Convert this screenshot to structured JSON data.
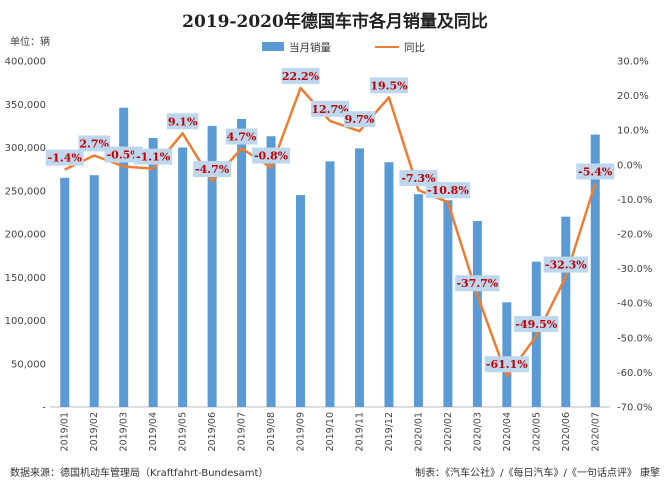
{
  "title": "2019-2020年德国车市各月销量及同比",
  "unit_label": "单位：辆",
  "source_label": "数据来源：德国机动车管理局（Kraftfahrt-Bundesamt）",
  "credit_label": "制表：《汽车公社》/《每日汽车》/《一句话点评》  康擎",
  "colors": {
    "bar": "#5b9bd5",
    "line": "#ed7d31",
    "label_text": "#c00000",
    "label_bg": "#bdd7ee"
  },
  "chart_data": {
    "type": "bar+line",
    "categories": [
      "2019/01",
      "2019/02",
      "2019/03",
      "2019/04",
      "2019/05",
      "2019/06",
      "2019/07",
      "2019/08",
      "2019/09",
      "2019/10",
      "2019/11",
      "2019/12",
      "2020/01",
      "2020/02",
      "2020/03",
      "2020/04",
      "2020/05",
      "2020/06",
      "2020/07"
    ],
    "series": [
      {
        "name": "当月销量",
        "type": "bar",
        "axis": "left",
        "values": [
          265000,
          268000,
          346000,
          311000,
          300000,
          325000,
          333000,
          313000,
          245000,
          284000,
          299000,
          283000,
          246000,
          239000,
          215000,
          121000,
          168000,
          220000,
          315000
        ]
      },
      {
        "name": "同比",
        "type": "line",
        "axis": "right",
        "values": [
          -1.4,
          2.7,
          -0.5,
          -1.1,
          9.1,
          -4.7,
          4.7,
          -0.8,
          22.2,
          12.7,
          9.7,
          19.5,
          -7.3,
          -10.8,
          -37.7,
          -61.1,
          -49.5,
          -32.3,
          -5.4
        ],
        "labels": [
          "-1.4%",
          "2.7%",
          "-0.5%",
          "-1.1%",
          "9.1%",
          "-4.7%",
          "4.7%",
          "-0.8%",
          "22.2%",
          "12.7%",
          "9.7%",
          "19.5%",
          "-7.3%",
          "-10.8%",
          "-37.7%",
          "-61.1%",
          "-49.5%",
          "-32.3%",
          "-5.4%"
        ]
      }
    ],
    "y_left": {
      "range": [
        0,
        400000
      ],
      "ticks": [
        "-",
        "50,000",
        "100,000",
        "150,000",
        "200,000",
        "250,000",
        "300,000",
        "350,000",
        "400,000"
      ]
    },
    "y_right": {
      "range": [
        -70,
        30
      ],
      "ticks": [
        "-70.0%",
        "-60.0%",
        "-50.0%",
        "-40.0%",
        "-30.0%",
        "-20.0%",
        "-10.0%",
        "0.0%",
        "10.0%",
        "20.0%",
        "30.0%"
      ]
    },
    "grid": false,
    "legend_position": "top"
  }
}
